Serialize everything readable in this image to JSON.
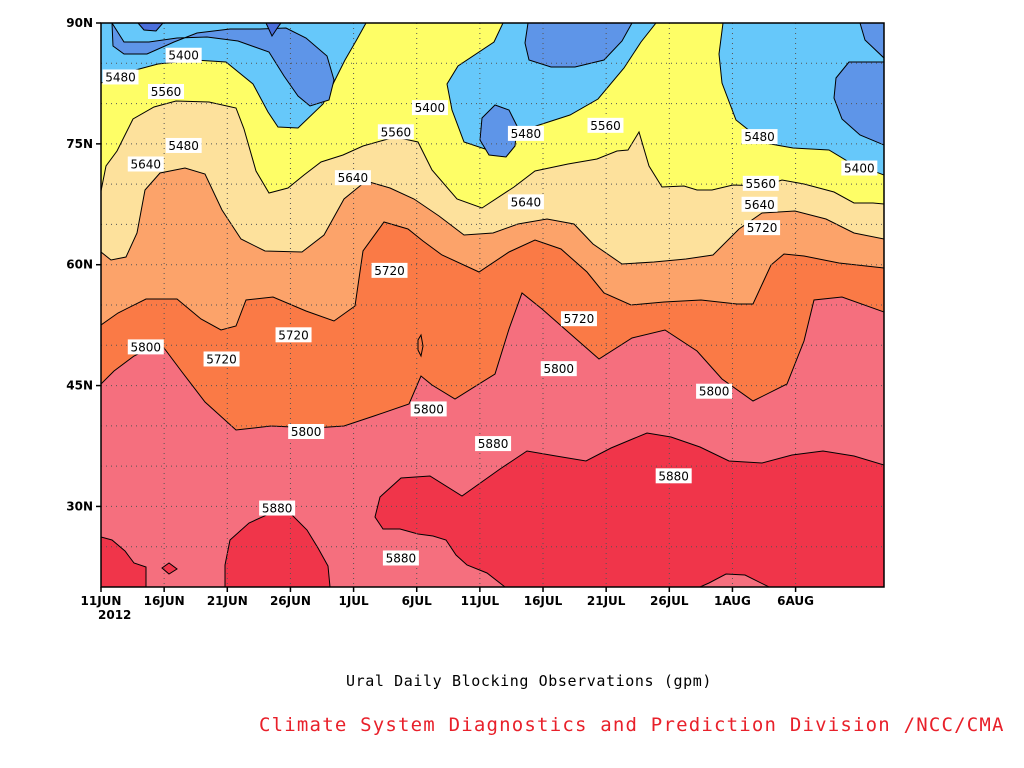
{
  "chart_data": {
    "type": "heatmap",
    "subtype": "filled-contour",
    "title": "Ural Daily Blocking Observations (gpm)",
    "credit": "Climate System Diagnostics and Prediction Division /NCC/CMA",
    "x_axis": {
      "year_label": "2012",
      "ticks": [
        "11JUN",
        "16JUN",
        "21JUN",
        "26JUN",
        "1JUL",
        "6JUL",
        "11JUL",
        "16JUL",
        "21JUL",
        "26JUL",
        "1AUG",
        "6AUG"
      ]
    },
    "y_axis": {
      "ticks": [
        "30N",
        "45N",
        "60N",
        "75N",
        "90N"
      ],
      "tick_values": [
        30,
        45,
        60,
        75,
        90
      ],
      "range": [
        20,
        90
      ]
    },
    "grid": "dotted",
    "levels": [
      5400,
      5480,
      5560,
      5640,
      5720,
      5800,
      5880
    ],
    "fill_colors": {
      "below_5400": "#4a6fdc",
      "5400_5480": "#5e95e8",
      "5480_5560": "#66c8fa",
      "5560_5640": "#fefe66",
      "5640_5720": "#fde19c",
      "5720_5800": "#fca36a",
      "5800_5880": "#fa7a46",
      "5880_5960": "#f56f7e",
      "above_5960": "#f0354a"
    },
    "contour_labels": [
      {
        "text": "5400",
        "x": 5.2,
        "y": 86
      },
      {
        "text": "5400",
        "x": 24.7,
        "y": 79.5
      },
      {
        "text": "5400",
        "x": 58.7,
        "y": 72
      },
      {
        "text": "5480",
        "x": 0.2,
        "y": 83.3
      },
      {
        "text": "5480",
        "x": 5.2,
        "y": 74.8
      },
      {
        "text": "5480",
        "x": 32.3,
        "y": 76.3
      },
      {
        "text": "5480",
        "x": 50.8,
        "y": 75.9
      },
      {
        "text": "5560",
        "x": 3.8,
        "y": 81.5
      },
      {
        "text": "5560",
        "x": 22,
        "y": 76.5
      },
      {
        "text": "5560",
        "x": 38.6,
        "y": 77.3
      },
      {
        "text": "5560",
        "x": 50.9,
        "y": 70.1
      },
      {
        "text": "5640",
        "x": 2.2,
        "y": 72.5
      },
      {
        "text": "5640",
        "x": 18.6,
        "y": 70.8
      },
      {
        "text": "5640",
        "x": 32.3,
        "y": 67.8
      },
      {
        "text": "5640",
        "x": 50.8,
        "y": 67.5
      },
      {
        "text": "5720",
        "x": 21.5,
        "y": 59.3
      },
      {
        "text": "5720",
        "x": 13.9,
        "y": 51.3
      },
      {
        "text": "5720",
        "x": 8.2,
        "y": 48.3
      },
      {
        "text": "5720",
        "x": 36.5,
        "y": 53.3
      },
      {
        "text": "5720",
        "x": 51,
        "y": 64.6
      },
      {
        "text": "5800",
        "x": 2.2,
        "y": 49.8
      },
      {
        "text": "5800",
        "x": 14.9,
        "y": 39.3
      },
      {
        "text": "5800",
        "x": 24.6,
        "y": 42.1
      },
      {
        "text": "5800",
        "x": 34.9,
        "y": 47.1
      },
      {
        "text": "5800",
        "x": 47.2,
        "y": 44.3
      },
      {
        "text": "5880",
        "x": 12.6,
        "y": 29.8
      },
      {
        "text": "5880",
        "x": 22.4,
        "y": 23.6
      },
      {
        "text": "5880",
        "x": 29.7,
        "y": 37.8
      },
      {
        "text": "5880",
        "x": 44,
        "y": 33.8
      }
    ]
  }
}
